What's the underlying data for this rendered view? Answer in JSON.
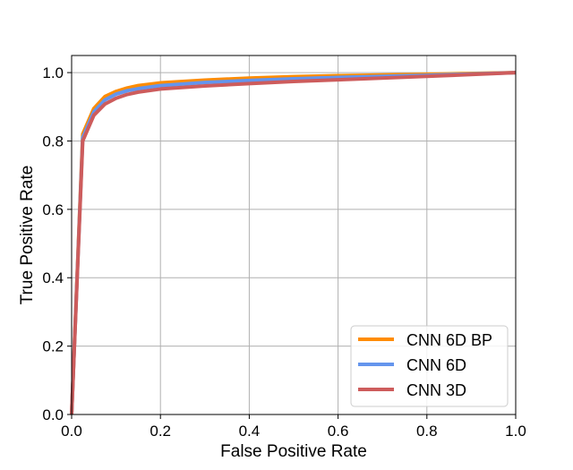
{
  "chart_data": {
    "type": "line",
    "title": "",
    "xlabel": "False Positive Rate",
    "ylabel": "True Positive Rate",
    "xlim": [
      0.0,
      1.0
    ],
    "ylim": [
      0.0,
      1.05
    ],
    "xticks": [
      0.0,
      0.2,
      0.4,
      0.6,
      0.8,
      1.0
    ],
    "yticks": [
      0.0,
      0.2,
      0.4,
      0.6,
      0.8,
      1.0
    ],
    "xtick_labels": [
      "0.0",
      "0.2",
      "0.4",
      "0.6",
      "0.8",
      "1.0"
    ],
    "ytick_labels": [
      "0.0",
      "0.2",
      "0.4",
      "0.6",
      "0.8",
      "1.0"
    ],
    "grid": true,
    "legend_position": "bottom-right",
    "series": [
      {
        "name": "CNN 6D BP",
        "color": "#ff8c00",
        "points": [
          [
            0.0,
            0.0
          ],
          [
            0.025,
            0.82
          ],
          [
            0.05,
            0.895
          ],
          [
            0.075,
            0.93
          ],
          [
            0.1,
            0.945
          ],
          [
            0.125,
            0.955
          ],
          [
            0.15,
            0.962
          ],
          [
            0.2,
            0.97
          ],
          [
            0.3,
            0.978
          ],
          [
            0.4,
            0.984
          ],
          [
            0.5,
            0.988
          ],
          [
            0.6,
            0.991
          ],
          [
            0.8,
            0.995
          ],
          [
            1.0,
            1.0
          ]
        ]
      },
      {
        "name": "CNN 6D",
        "color": "#6495ed",
        "points": [
          [
            0.0,
            0.0
          ],
          [
            0.025,
            0.81
          ],
          [
            0.05,
            0.885
          ],
          [
            0.075,
            0.92
          ],
          [
            0.1,
            0.937
          ],
          [
            0.125,
            0.947
          ],
          [
            0.15,
            0.953
          ],
          [
            0.2,
            0.962
          ],
          [
            0.3,
            0.971
          ],
          [
            0.4,
            0.977
          ],
          [
            0.5,
            0.982
          ],
          [
            0.6,
            0.986
          ],
          [
            0.8,
            0.992
          ],
          [
            1.0,
            1.0
          ]
        ]
      },
      {
        "name": "CNN 3D",
        "color": "#cd5c5c",
        "points": [
          [
            0.0,
            0.0
          ],
          [
            0.025,
            0.8
          ],
          [
            0.05,
            0.875
          ],
          [
            0.075,
            0.908
          ],
          [
            0.1,
            0.925
          ],
          [
            0.125,
            0.936
          ],
          [
            0.15,
            0.943
          ],
          [
            0.2,
            0.952
          ],
          [
            0.3,
            0.961
          ],
          [
            0.4,
            0.968
          ],
          [
            0.5,
            0.974
          ],
          [
            0.6,
            0.979
          ],
          [
            0.8,
            0.989
          ],
          [
            1.0,
            1.0
          ]
        ]
      }
    ]
  }
}
